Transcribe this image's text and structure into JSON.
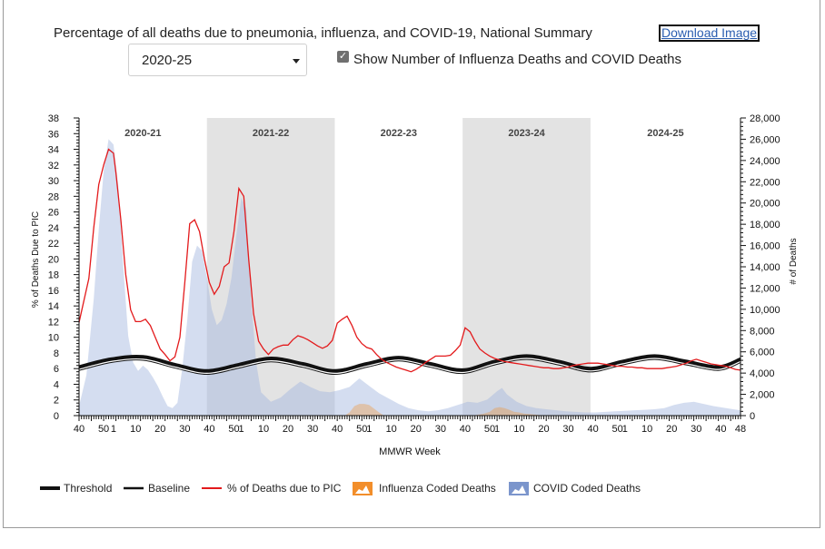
{
  "header": {
    "title": "Percentage of all deaths due to pneumonia, influenza, and COVID-19, National Summary",
    "download_label": "Download Image",
    "season_select": "2020-25",
    "checkbox_checked": true,
    "checkbox_label": "Show Number of Influenza Deaths and COVID Deaths"
  },
  "chart_data": {
    "type": "line",
    "xlabel": "MMWR Week",
    "ylabel_left": "% of Deaths Due to PIC",
    "ylabel_right": "# of Deaths",
    "ylim_left": [
      0,
      38
    ],
    "ylim_right": [
      0,
      28000
    ],
    "y_ticks_left": [
      0,
      2,
      4,
      6,
      8,
      10,
      12,
      14,
      16,
      18,
      20,
      22,
      24,
      26,
      28,
      30,
      32,
      34,
      36,
      38
    ],
    "y_ticks_right": [
      0,
      2000,
      4000,
      6000,
      8000,
      10000,
      12000,
      14000,
      16000,
      18000,
      20000,
      22000,
      24000,
      26000,
      28000
    ],
    "y_tick_labels_right": [
      "0",
      "2,000",
      "4,000",
      "6,000",
      "8,000",
      "10,000",
      "12,000",
      "14,000",
      "16,000",
      "18,000",
      "20,000",
      "22,000",
      "24,000",
      "26,000",
      "28,000"
    ],
    "x_ticks": [
      {
        "pos": 0,
        "label": "40"
      },
      {
        "pos": 10,
        "label": "50"
      },
      {
        "pos": 14,
        "label": "1"
      },
      {
        "pos": 23,
        "label": "10"
      },
      {
        "pos": 33,
        "label": "20"
      },
      {
        "pos": 43,
        "label": "30"
      },
      {
        "pos": 53,
        "label": "40"
      },
      {
        "pos": 63,
        "label": "50"
      },
      {
        "pos": 66,
        "label": "1"
      },
      {
        "pos": 75,
        "label": "10"
      },
      {
        "pos": 85,
        "label": "20"
      },
      {
        "pos": 95,
        "label": "30"
      },
      {
        "pos": 105,
        "label": "40"
      },
      {
        "pos": 115,
        "label": "50"
      },
      {
        "pos": 118,
        "label": "1"
      },
      {
        "pos": 127,
        "label": "10"
      },
      {
        "pos": 137,
        "label": "20"
      },
      {
        "pos": 147,
        "label": "30"
      },
      {
        "pos": 157,
        "label": "40"
      },
      {
        "pos": 167,
        "label": "50"
      },
      {
        "pos": 170,
        "label": "1"
      },
      {
        "pos": 179,
        "label": "10"
      },
      {
        "pos": 189,
        "label": "20"
      },
      {
        "pos": 199,
        "label": "30"
      },
      {
        "pos": 209,
        "label": "40"
      },
      {
        "pos": 219,
        "label": "50"
      },
      {
        "pos": 222,
        "label": "1"
      },
      {
        "pos": 231,
        "label": "10"
      },
      {
        "pos": 241,
        "label": "20"
      },
      {
        "pos": 251,
        "label": "30"
      },
      {
        "pos": 261,
        "label": "40"
      },
      {
        "pos": 269,
        "label": "48"
      }
    ],
    "x_max": 269,
    "seasons": [
      {
        "label": "2020-21",
        "start": 0,
        "end": 52,
        "shaded": false
      },
      {
        "label": "2021-22",
        "start": 52,
        "end": 104,
        "shaded": true
      },
      {
        "label": "2022-23",
        "start": 104,
        "end": 156,
        "shaded": false
      },
      {
        "label": "2023-24",
        "start": 156,
        "end": 208,
        "shaded": true
      },
      {
        "label": "2024-25",
        "start": 208,
        "end": 269,
        "shaded": false
      }
    ],
    "series": [
      {
        "name": "% of Deaths due to PIC",
        "color": "#e31a1c",
        "axis": "left",
        "x": [
          0,
          4,
          6,
          8,
          10,
          12,
          14,
          15,
          17,
          19,
          21,
          23,
          25,
          27,
          29,
          31,
          33,
          35,
          37,
          39,
          41,
          43,
          45,
          47,
          49,
          51,
          53,
          55,
          57,
          59,
          61,
          63,
          65,
          67,
          69,
          71,
          73,
          75,
          77,
          79,
          81,
          83,
          85,
          87,
          89,
          91,
          93,
          95,
          97,
          99,
          101,
          103,
          105,
          107,
          109,
          111,
          113,
          115,
          117,
          119,
          121,
          123,
          125,
          127,
          129,
          131,
          133,
          135,
          137,
          139,
          141,
          143,
          145,
          147,
          149,
          151,
          153,
          155,
          157,
          159,
          161,
          163,
          165,
          167,
          169,
          171,
          173,
          175,
          177,
          179,
          181,
          183,
          185,
          187,
          189,
          191,
          193,
          195,
          197,
          199,
          201,
          203,
          205,
          207,
          209,
          211,
          213,
          215,
          217,
          219,
          221,
          223,
          225,
          227,
          229,
          231,
          233,
          235,
          237,
          239,
          241,
          243,
          245,
          247,
          249,
          251,
          253,
          255,
          257,
          259,
          261,
          263,
          265,
          267,
          269
        ],
        "values": [
          11.9,
          17.5,
          24.0,
          29.5,
          32.0,
          34.0,
          33.5,
          31.0,
          25.0,
          18.0,
          13.5,
          12.0,
          12.0,
          12.3,
          11.5,
          10.0,
          8.5,
          7.8,
          7.0,
          7.5,
          10.0,
          17.0,
          24.5,
          25.0,
          23.5,
          20.0,
          17.0,
          15.5,
          16.5,
          19.0,
          19.5,
          23.5,
          29.0,
          28.0,
          20.0,
          13.0,
          9.5,
          8.5,
          7.8,
          8.5,
          8.8,
          9.0,
          9.0,
          9.7,
          10.2,
          10.0,
          9.7,
          9.3,
          8.9,
          8.6,
          8.9,
          9.6,
          11.8,
          12.3,
          12.7,
          11.5,
          10.0,
          9.2,
          8.7,
          8.5,
          7.8,
          7.2,
          6.8,
          6.5,
          6.2,
          6.0,
          5.8,
          5.6,
          5.9,
          6.3,
          6.8,
          7.2,
          7.6,
          7.6,
          7.6,
          7.7,
          8.3,
          9.0,
          11.2,
          10.7,
          9.5,
          8.5,
          8.0,
          7.6,
          7.3,
          7.1,
          6.9,
          6.8,
          6.7,
          6.6,
          6.5,
          6.4,
          6.3,
          6.2,
          6.1,
          6.1,
          6.0,
          6.0,
          6.1,
          6.2,
          6.4,
          6.5,
          6.6,
          6.7,
          6.7,
          6.7,
          6.6,
          6.5,
          6.4,
          6.3,
          6.3,
          6.2,
          6.2,
          6.1,
          6.1,
          6.0,
          6.0,
          6.0,
          6.0,
          6.1,
          6.2,
          6.3,
          6.5,
          6.7,
          7.0,
          7.2,
          7.0,
          6.8,
          6.6,
          6.5,
          6.4,
          6.3,
          6.1,
          5.9,
          5.8
        ]
      },
      {
        "name": "Threshold",
        "color": "#111111",
        "axis": "left",
        "x": [
          0,
          13,
          26,
          39,
          52,
          65,
          78,
          91,
          104,
          117,
          130,
          143,
          156,
          169,
          182,
          195,
          208,
          221,
          234,
          247,
          260,
          269
        ],
        "values": [
          6.2,
          7.2,
          7.5,
          6.5,
          5.7,
          6.5,
          7.3,
          6.6,
          5.7,
          6.6,
          7.4,
          6.6,
          5.8,
          6.9,
          7.6,
          6.9,
          6.0,
          6.9,
          7.6,
          6.9,
          6.2,
          7.2
        ]
      },
      {
        "name": "Baseline",
        "color": "#111111",
        "axis": "left",
        "x": [
          0,
          13,
          26,
          39,
          52,
          65,
          78,
          91,
          104,
          117,
          130,
          143,
          156,
          169,
          182,
          195,
          208,
          221,
          234,
          247,
          260,
          269
        ],
        "values": [
          5.9,
          6.9,
          7.2,
          6.2,
          5.4,
          6.2,
          7.0,
          6.3,
          5.4,
          6.3,
          7.1,
          6.3,
          5.5,
          6.6,
          7.3,
          6.6,
          5.7,
          6.6,
          7.3,
          6.6,
          5.9,
          6.9
        ]
      },
      {
        "name": "COVID Coded Deaths",
        "color": "#7b95cc",
        "axis": "right",
        "x": [
          0,
          3,
          6,
          8,
          10,
          12,
          14,
          16,
          18,
          20,
          22,
          24,
          26,
          28,
          30,
          32,
          34,
          36,
          38,
          40,
          42,
          44,
          46,
          48,
          50,
          52,
          54,
          56,
          58,
          60,
          62,
          64,
          66,
          68,
          70,
          72,
          74,
          78,
          82,
          86,
          90,
          94,
          98,
          102,
          106,
          110,
          114,
          118,
          122,
          126,
          130,
          134,
          138,
          142,
          146,
          150,
          154,
          158,
          162,
          166,
          168,
          170,
          172,
          174,
          178,
          182,
          186,
          190,
          194,
          198,
          202,
          206,
          210,
          214,
          218,
          222,
          226,
          230,
          234,
          238,
          242,
          246,
          250,
          254,
          258,
          262,
          266,
          269
        ],
        "values": [
          900,
          3800,
          11000,
          17500,
          23000,
          26000,
          25500,
          21500,
          14000,
          7500,
          5000,
          4200,
          4700,
          4300,
          3600,
          2800,
          1800,
          900,
          700,
          1200,
          4500,
          9000,
          14500,
          16000,
          15500,
          13000,
          10000,
          8500,
          9000,
          10500,
          13000,
          17000,
          20500,
          19500,
          11000,
          5000,
          2200,
          1300,
          1700,
          2500,
          3200,
          2700,
          2300,
          2200,
          2400,
          2700,
          3500,
          2800,
          2100,
          1600,
          1100,
          700,
          500,
          400,
          500,
          700,
          1000,
          1300,
          1200,
          1500,
          1900,
          2300,
          2600,
          2000,
          1300,
          900,
          700,
          600,
          500,
          400,
          350,
          300,
          300,
          350,
          400,
          450,
          500,
          550,
          600,
          700,
          1000,
          1200,
          1300,
          1100,
          900,
          750,
          600,
          500
        ]
      },
      {
        "name": "Influenza Coded Deaths",
        "color": "#f28e2b",
        "axis": "right",
        "x": [
          0,
          100,
          108,
          110,
          112,
          114,
          116,
          118,
          122,
          124,
          160,
          164,
          167,
          169,
          171,
          173,
          175,
          177,
          179,
          181,
          183,
          185,
          188,
          190,
          269
        ],
        "values": [
          0,
          0,
          0,
          300,
          900,
          1100,
          1100,
          1000,
          300,
          0,
          0,
          150,
          350,
          700,
          800,
          700,
          550,
          350,
          300,
          200,
          150,
          100,
          30,
          0,
          0
        ]
      }
    ],
    "legend": [
      {
        "label": "Threshold",
        "style": "thick-line"
      },
      {
        "label": "Baseline",
        "style": "double-line"
      },
      {
        "label": "% of Deaths due to PIC",
        "style": "red-line"
      },
      {
        "label": "Influenza Coded Deaths",
        "style": "orange-area"
      },
      {
        "label": "COVID Coded Deaths",
        "style": "blue-area"
      }
    ]
  }
}
